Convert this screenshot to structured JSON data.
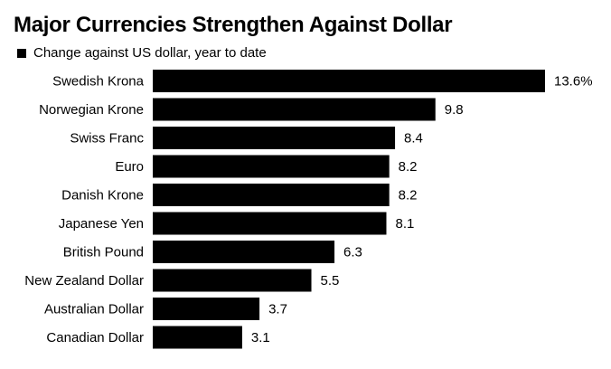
{
  "chart_data": {
    "type": "bar",
    "orientation": "horizontal",
    "title": "Major Currencies Strengthen Against Dollar",
    "legend": [
      "Change against US dollar, year to date"
    ],
    "legend_placement": "top-left",
    "categories": [
      "Swedish Krona",
      "Norwegian Krone",
      "Swiss Franc",
      "Euro",
      "Danish Krone",
      "Japanese Yen",
      "British Pound",
      "New Zealand Dollar",
      "Australian Dollar",
      "Canadian Dollar"
    ],
    "series": [
      {
        "name": "Change against US dollar, year to date",
        "values": [
          13.6,
          9.8,
          8.4,
          8.2,
          8.2,
          8.1,
          6.3,
          5.5,
          3.7,
          3.1
        ],
        "labels": [
          "13.6%",
          "9.8",
          "8.4",
          "8.2",
          "8.2",
          "8.1",
          "6.3",
          "5.5",
          "3.7",
          "3.1"
        ]
      }
    ],
    "bar_color": "#000000",
    "grid": false,
    "xlim": [
      0,
      13.6
    ]
  }
}
